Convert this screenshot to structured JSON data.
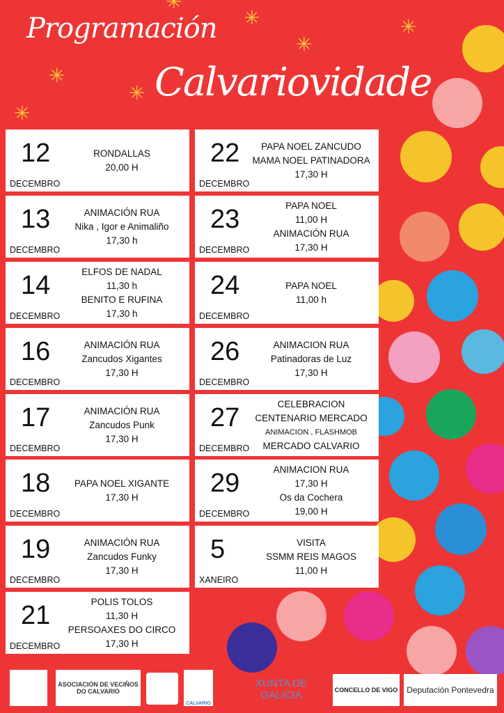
{
  "title": {
    "line1": "Programación",
    "line2": "Calvariovidade"
  },
  "colors": {
    "background": "#ee3535",
    "card": "#ffffff",
    "text": "#111111"
  },
  "events": [
    {
      "day": "12",
      "month": "DECEMBRO",
      "lines": [
        "RONDALLAS",
        "20,00 H"
      ]
    },
    {
      "day": "22",
      "month": "DECEMBRO",
      "lines": [
        "PAPA NOEL ZANCUDO",
        "MAMA NOEL PATINADORA",
        "17,30 H"
      ]
    },
    {
      "day": "13",
      "month": "DECEMBRO",
      "lines": [
        "ANIMACIÓN RUA",
        "Nika , Igor e Animaliño",
        "17,30 h"
      ]
    },
    {
      "day": "23",
      "month": "DECEMBRO",
      "lines": [
        "PAPA NOEL",
        "11,00 H",
        "ANIMACIÓN RUA",
        "17,30 H"
      ]
    },
    {
      "day": "14",
      "month": "DECEMBRO",
      "lines": [
        "ELFOS DE NADAL",
        "11,30 h",
        "BENITO E RUFINA",
        "17,30 h"
      ]
    },
    {
      "day": "24",
      "month": "DECEMBRO",
      "lines": [
        "PAPA NOEL",
        "11,00 h"
      ]
    },
    {
      "day": "16",
      "month": "DECEMBRO",
      "lines": [
        "ANIMACIÓN RUA",
        "Zancudos Xigantes",
        "17,30 H"
      ]
    },
    {
      "day": "26",
      "month": "DECEMBRO",
      "lines": [
        "ANIMACION RUA",
        "Patinadoras de Luz",
        "17,30 H"
      ]
    },
    {
      "day": "17",
      "month": "DECEMBRO",
      "lines": [
        "ANIMACIÓN RUA",
        "Zancudos Punk",
        "17,30 H"
      ]
    },
    {
      "day": "27",
      "month": "DECEMBRO",
      "lines": [
        "CELEBRACION",
        "CENTENARIO MERCADO",
        "ANIMACION , FLASHMOB",
        "MERCADO CALVARIO"
      ]
    },
    {
      "day": "18",
      "month": "DECEMBRO",
      "lines": [
        "PAPA NOEL XIGANTE",
        "17,30 H"
      ]
    },
    {
      "day": "29",
      "month": "DECEMBRO",
      "lines": [
        "ANIMACION RUA",
        "17,30 H",
        "Os da Cochera",
        "19,00 H"
      ]
    },
    {
      "day": "19",
      "month": "DECEMBRO",
      "lines": [
        "ANIMACIÓN RUA",
        "Zancudos Funky",
        "17,30 H"
      ]
    },
    {
      "day": "5",
      "month": "XANEIRO",
      "lines": [
        "VISITA",
        "SSMM REIS MAGOS",
        "11,00 H"
      ]
    },
    {
      "day": "21",
      "month": "DECEMBRO",
      "lines": [
        "POLIS TOLOS",
        "11,30 H",
        "PERSOAXES DO CIRCO",
        "17,30 H"
      ]
    }
  ],
  "sponsors": [
    "ASOCIACIÓN DE VECIÑOS DO CALVARIO",
    "CALVARIO",
    "XUNTA DE GALICIA",
    "CONCELLO DE VIGO",
    "Deputación Pontevedra"
  ]
}
